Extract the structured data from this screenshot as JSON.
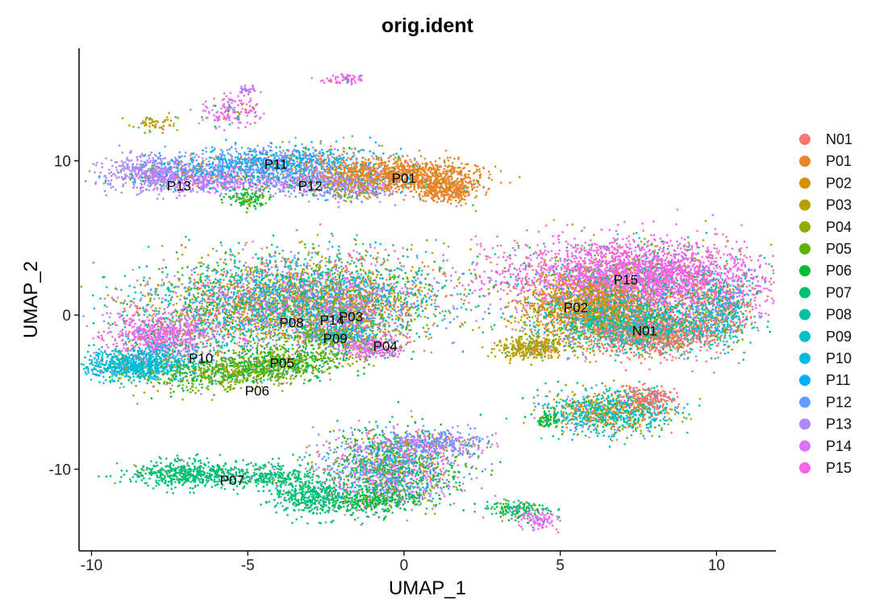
{
  "chart_data": {
    "type": "scatter",
    "title": "orig.ident",
    "xlabel": "UMAP_1",
    "ylabel": "UMAP_2",
    "xlim": [
      -10.4,
      11.9
    ],
    "ylim": [
      -15.3,
      17.3
    ],
    "x_ticks": [
      {
        "value": -10,
        "label": "-10"
      },
      {
        "value": -5,
        "label": "-5"
      },
      {
        "value": 0,
        "label": "0"
      },
      {
        "value": 5,
        "label": "5"
      },
      {
        "value": 10,
        "label": "10"
      }
    ],
    "y_ticks": [
      {
        "value": -10,
        "label": "-10"
      },
      {
        "value": 0,
        "label": "0"
      },
      {
        "value": 10,
        "label": "10"
      }
    ],
    "grid": false,
    "legend_position": "right",
    "series": [
      {
        "name": "N01",
        "color": "#F8766D"
      },
      {
        "name": "P01",
        "color": "#E88526"
      },
      {
        "name": "P02",
        "color": "#D39200"
      },
      {
        "name": "P03",
        "color": "#B79F00"
      },
      {
        "name": "P04",
        "color": "#93AA00"
      },
      {
        "name": "P05",
        "color": "#5EB300"
      },
      {
        "name": "P06",
        "color": "#00BA38"
      },
      {
        "name": "P07",
        "color": "#00BF74"
      },
      {
        "name": "P08",
        "color": "#00C19F"
      },
      {
        "name": "P09",
        "color": "#00BFC4"
      },
      {
        "name": "P10",
        "color": "#00B9E3"
      },
      {
        "name": "P11",
        "color": "#00ADFA"
      },
      {
        "name": "P12",
        "color": "#619CFF"
      },
      {
        "name": "P13",
        "color": "#AE87FF"
      },
      {
        "name": "P14",
        "color": "#DB72FB"
      },
      {
        "name": "P15",
        "color": "#F564E3"
      }
    ],
    "cluster_labels": [
      {
        "text": "P13",
        "x": -7.2,
        "y": 8.4
      },
      {
        "text": "P11",
        "x": -4.1,
        "y": 9.8
      },
      {
        "text": "P12",
        "x": -3.0,
        "y": 8.4
      },
      {
        "text": "P01",
        "x": 0.0,
        "y": 8.9
      },
      {
        "text": "P15",
        "x": 7.1,
        "y": 2.3
      },
      {
        "text": "P02",
        "x": 5.5,
        "y": 0.5
      },
      {
        "text": "N01",
        "x": 7.7,
        "y": -1.0
      },
      {
        "text": "P08",
        "x": -3.6,
        "y": -0.5
      },
      {
        "text": "P14",
        "x": -2.3,
        "y": -0.3
      },
      {
        "text": "P03",
        "x": -1.7,
        "y": -0.1
      },
      {
        "text": "P09",
        "x": -2.2,
        "y": -1.5
      },
      {
        "text": "P04",
        "x": -0.6,
        "y": -2.0
      },
      {
        "text": "P10",
        "x": -6.5,
        "y": -2.8
      },
      {
        "text": "P05",
        "x": -3.9,
        "y": -3.1
      },
      {
        "text": "P06",
        "x": -4.7,
        "y": -4.9
      },
      {
        "text": "P07",
        "x": -5.5,
        "y": -10.7
      }
    ],
    "clusters": [
      {
        "x": -5.0,
        "y": 14.6,
        "sx": 0.15,
        "sy": 0.2,
        "ang": 0,
        "n": 30,
        "dominant": [
          14
        ],
        "mix": 0.1
      },
      {
        "x": -1.9,
        "y": 15.3,
        "sx": 0.4,
        "sy": 0.2,
        "ang": 0.15,
        "n": 60,
        "dominant": [
          15
        ],
        "mix": 0.1
      },
      {
        "x": -5.5,
        "y": 13.2,
        "sx": 0.5,
        "sy": 0.5,
        "ang": 0.3,
        "n": 160,
        "dominant": [
          15,
          14
        ],
        "mix": 0.15
      },
      {
        "x": -8.0,
        "y": 12.4,
        "sx": 0.35,
        "sy": 0.25,
        "ang": 0,
        "n": 60,
        "dominant": [
          3
        ],
        "mix": 0.2
      },
      {
        "x": -7.9,
        "y": 9.2,
        "sx": 0.8,
        "sy": 0.6,
        "ang": 0,
        "n": 600,
        "dominant": [
          13
        ],
        "mix": 0.1
      },
      {
        "x": -6.0,
        "y": 8.8,
        "sx": 1.0,
        "sy": 0.4,
        "ang": 0,
        "n": 450,
        "dominant": [
          13,
          14
        ],
        "mix": 0.15
      },
      {
        "x": -4.1,
        "y": 9.8,
        "sx": 1.7,
        "sy": 0.55,
        "ang": 0.05,
        "n": 1100,
        "dominant": [
          11,
          12
        ],
        "mix": 0.2
      },
      {
        "x": -2.5,
        "y": 8.6,
        "sx": 1.2,
        "sy": 0.5,
        "ang": -0.05,
        "n": 600,
        "dominant": [
          12,
          13,
          14
        ],
        "mix": 0.2
      },
      {
        "x": -5.0,
        "y": 7.5,
        "sx": 0.35,
        "sy": 0.3,
        "ang": 0,
        "n": 120,
        "dominant": [
          5,
          6
        ],
        "mix": 0.15
      },
      {
        "x": 0.0,
        "y": 9.1,
        "sx": 1.3,
        "sy": 0.55,
        "ang": -0.15,
        "n": 1100,
        "dominant": [
          1
        ],
        "mix": 0.1
      },
      {
        "x": 1.3,
        "y": 8.1,
        "sx": 0.5,
        "sy": 0.35,
        "ang": -0.3,
        "n": 300,
        "dominant": [
          1
        ],
        "mix": 0.05
      },
      {
        "x": -1.5,
        "y": 8.3,
        "sx": 0.6,
        "sy": 0.4,
        "ang": 0,
        "n": 200,
        "dominant": [
          3,
          14
        ],
        "mix": 0.4
      },
      {
        "x": -3.6,
        "y": 0.8,
        "sx": 2.4,
        "sy": 1.5,
        "ang": 0.15,
        "n": 4500,
        "dominant": [],
        "mix": 1.0
      },
      {
        "x": -7.8,
        "y": -1.3,
        "sx": 0.8,
        "sy": 0.7,
        "ang": 0,
        "n": 700,
        "dominant": [
          15,
          14
        ],
        "mix": 0.2
      },
      {
        "x": -8.4,
        "y": -3.2,
        "sx": 0.9,
        "sy": 0.5,
        "ang": 0.05,
        "n": 900,
        "dominant": [
          10,
          9
        ],
        "mix": 0.15
      },
      {
        "x": -4.7,
        "y": -3.4,
        "sx": 1.6,
        "sy": 0.55,
        "ang": 0.28,
        "n": 1200,
        "dominant": [
          4,
          5,
          6
        ],
        "mix": 0.15
      },
      {
        "x": -2.3,
        "y": -1.4,
        "sx": 0.6,
        "sy": 0.3,
        "ang": 0,
        "n": 300,
        "dominant": [
          5,
          9
        ],
        "mix": 0.2
      },
      {
        "x": -1.0,
        "y": -2.1,
        "sx": 0.5,
        "sy": 0.4,
        "ang": 0,
        "n": 250,
        "dominant": [
          14,
          15
        ],
        "mix": 0.2
      },
      {
        "x": -1.8,
        "y": 0.0,
        "sx": 0.7,
        "sy": 0.9,
        "ang": 0,
        "n": 500,
        "dominant": [
          3,
          12,
          14
        ],
        "mix": 0.5
      },
      {
        "x": 7.4,
        "y": 2.4,
        "sx": 2.0,
        "sy": 1.2,
        "ang": -0.05,
        "n": 3500,
        "dominant": [
          15
        ],
        "mix": 0.2
      },
      {
        "x": 6.0,
        "y": 0.3,
        "sx": 1.1,
        "sy": 1.0,
        "ang": 0,
        "n": 1500,
        "dominant": [
          2
        ],
        "mix": 0.3
      },
      {
        "x": 8.0,
        "y": -1.2,
        "sx": 1.1,
        "sy": 0.7,
        "ang": 0,
        "n": 1200,
        "dominant": [
          0
        ],
        "mix": 0.3
      },
      {
        "x": 7.3,
        "y": -0.5,
        "sx": 1.5,
        "sy": 0.9,
        "ang": 0,
        "n": 900,
        "dominant": [
          9,
          8
        ],
        "mix": 0.4
      },
      {
        "x": 10.2,
        "y": 0.2,
        "sx": 0.5,
        "sy": 1.1,
        "ang": 0,
        "n": 500,
        "dominant": [
          9,
          12,
          8,
          0
        ],
        "mix": 0.3
      },
      {
        "x": 4.1,
        "y": -2.1,
        "sx": 0.55,
        "sy": 0.35,
        "ang": 0,
        "n": 350,
        "dominant": [
          3
        ],
        "mix": 0.1
      },
      {
        "x": 6.6,
        "y": -6.3,
        "sx": 1.0,
        "sy": 0.7,
        "ang": 0,
        "n": 1000,
        "dominant": [
          8,
          9,
          2
        ],
        "mix": 0.35
      },
      {
        "x": 7.8,
        "y": -5.4,
        "sx": 0.4,
        "sy": 0.4,
        "ang": 0,
        "n": 200,
        "dominant": [
          0
        ],
        "mix": 0.1
      },
      {
        "x": 4.6,
        "y": -6.8,
        "sx": 0.2,
        "sy": 0.3,
        "ang": 0,
        "n": 60,
        "dominant": [
          6
        ],
        "mix": 0.1
      },
      {
        "x": -0.5,
        "y": -10.0,
        "sx": 1.1,
        "sy": 1.2,
        "ang": 0,
        "n": 1700,
        "dominant": [
          14,
          12,
          6
        ],
        "mix": 0.45
      },
      {
        "x": 1.0,
        "y": -8.3,
        "sx": 0.8,
        "sy": 0.4,
        "ang": 0,
        "n": 400,
        "dominant": [
          12,
          14
        ],
        "mix": 0.3
      },
      {
        "x": -1.0,
        "y": -12.0,
        "sx": 0.7,
        "sy": 0.4,
        "ang": 0,
        "n": 300,
        "dominant": [
          6
        ],
        "mix": 0.2
      },
      {
        "x": 3.6,
        "y": -12.6,
        "sx": 0.55,
        "sy": 0.3,
        "ang": -0.2,
        "n": 160,
        "dominant": [
          7,
          6
        ],
        "mix": 0.2
      },
      {
        "x": 4.3,
        "y": -13.3,
        "sx": 0.35,
        "sy": 0.3,
        "ang": 0,
        "n": 100,
        "dominant": [
          15,
          14
        ],
        "mix": 0.15
      },
      {
        "x": -7.0,
        "y": -10.3,
        "sx": 0.9,
        "sy": 0.45,
        "ang": 0,
        "n": 500,
        "dominant": [
          7
        ],
        "mix": 0.05
      },
      {
        "x": -4.4,
        "y": -10.5,
        "sx": 0.8,
        "sy": 0.4,
        "ang": 0,
        "n": 300,
        "dominant": [
          7
        ],
        "mix": 0.05
      },
      {
        "x": -3.0,
        "y": -11.8,
        "sx": 0.6,
        "sy": 0.6,
        "ang": 0,
        "n": 400,
        "dominant": [
          7
        ],
        "mix": 0.05
      }
    ]
  }
}
